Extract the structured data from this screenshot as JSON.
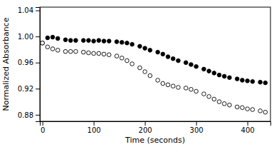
{
  "chart_data": {
    "type": "scatter",
    "xlabel": "Time (seconds)",
    "ylabel": "Normalized Absorbance",
    "xlim": [
      -5,
      445
    ],
    "ylim": [
      0.87,
      1.045
    ],
    "xticks": [
      0,
      100,
      200,
      300,
      400
    ],
    "yticks": [
      0.88,
      0.92,
      0.96,
      {
        "value": 1.0,
        "label": "1.00"
      },
      1.04
    ],
    "series": [
      {
        "color": "#000000",
        "marker": "filled-circle",
        "x": [
          0,
          10,
          20,
          30,
          45,
          55,
          65,
          80,
          90,
          100,
          110,
          120,
          130,
          145,
          155,
          165,
          175,
          190,
          200,
          210,
          225,
          235,
          245,
          255,
          265,
          280,
          290,
          300,
          315,
          325,
          335,
          345,
          355,
          365,
          380,
          390,
          400,
          410,
          425,
          435
        ],
        "values": [
          0.99,
          0.998,
          0.999,
          0.997,
          0.995,
          0.994,
          0.994,
          0.994,
          0.994,
          0.993,
          0.994,
          0.993,
          0.993,
          0.992,
          0.991,
          0.99,
          0.988,
          0.985,
          0.982,
          0.979,
          0.976,
          0.973,
          0.969,
          0.966,
          0.963,
          0.96,
          0.957,
          0.954,
          0.95,
          0.947,
          0.944,
          0.941,
          0.939,
          0.937,
          0.935,
          0.933,
          0.932,
          0.931,
          0.93,
          0.929
        ]
      },
      {
        "color": "#000000",
        "marker": "open-circle",
        "x": [
          0,
          10,
          20,
          30,
          45,
          55,
          65,
          80,
          90,
          100,
          110,
          120,
          130,
          145,
          155,
          165,
          175,
          190,
          200,
          210,
          225,
          235,
          245,
          255,
          265,
          280,
          290,
          300,
          315,
          325,
          335,
          345,
          355,
          365,
          380,
          390,
          400,
          410,
          425,
          435
        ],
        "values": [
          0.99,
          0.984,
          0.981,
          0.979,
          0.977,
          0.977,
          0.977,
          0.976,
          0.975,
          0.974,
          0.974,
          0.973,
          0.972,
          0.97,
          0.967,
          0.963,
          0.958,
          0.952,
          0.946,
          0.94,
          0.933,
          0.928,
          0.926,
          0.924,
          0.922,
          0.921,
          0.919,
          0.916,
          0.912,
          0.908,
          0.904,
          0.9,
          0.897,
          0.895,
          0.892,
          0.891,
          0.889,
          0.888,
          0.886,
          0.884
        ]
      }
    ]
  }
}
